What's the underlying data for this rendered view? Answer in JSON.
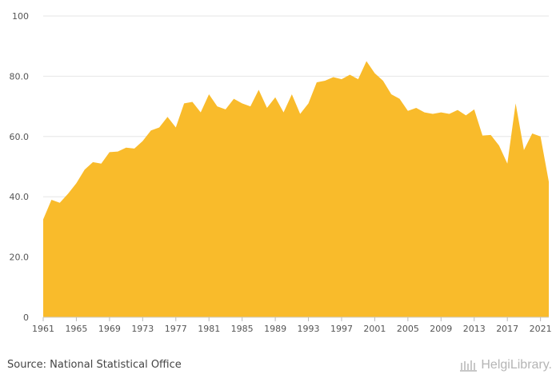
{
  "footer": {
    "source": "Source: National Statistical Office",
    "logo_text": "HelgiLibrary."
  },
  "chart_data": {
    "type": "area",
    "title": "",
    "xlabel": "",
    "ylabel": "",
    "color": "#f9bb2b",
    "gridline_color": "#e6e6e6",
    "grid": true,
    "ylim": [
      0,
      100
    ],
    "xlim": [
      1961,
      2022
    ],
    "y_ticks": [
      0,
      20,
      40,
      60,
      80,
      100
    ],
    "y_tick_labels": [
      "0",
      "20.0",
      "40.0",
      "60.0",
      "80.0",
      "100"
    ],
    "x_ticks": [
      1961,
      1965,
      1969,
      1973,
      1977,
      1981,
      1985,
      1989,
      1993,
      1997,
      2001,
      2005,
      2009,
      2013,
      2017,
      2021
    ],
    "x_tick_labels": [
      "1961",
      "1965",
      "1969",
      "1973",
      "1977",
      "1981",
      "1985",
      "1989",
      "1993",
      "1997",
      "2001",
      "2005",
      "2009",
      "2013",
      "2017",
      "2021"
    ],
    "x": [
      1961,
      1962,
      1963,
      1964,
      1965,
      1966,
      1967,
      1968,
      1969,
      1970,
      1971,
      1972,
      1973,
      1974,
      1975,
      1976,
      1977,
      1978,
      1979,
      1980,
      1981,
      1982,
      1983,
      1984,
      1985,
      1986,
      1987,
      1988,
      1989,
      1990,
      1991,
      1992,
      1993,
      1994,
      1995,
      1996,
      1997,
      1998,
      1999,
      2000,
      2001,
      2002,
      2003,
      2004,
      2005,
      2006,
      2007,
      2008,
      2009,
      2010,
      2011,
      2012,
      2013,
      2014,
      2015,
      2016,
      2017,
      2018,
      2019,
      2020,
      2021,
      2022
    ],
    "values": [
      32.5,
      39.0,
      38.0,
      41.0,
      44.5,
      49.0,
      51.5,
      51.0,
      54.8,
      55.0,
      56.3,
      56.0,
      58.5,
      62.0,
      63.0,
      66.5,
      63.0,
      71.0,
      71.5,
      68.0,
      74.0,
      70.0,
      69.0,
      72.5,
      71.0,
      70.0,
      75.5,
      69.5,
      73.0,
      68.0,
      74.0,
      67.5,
      71.0,
      78.0,
      78.5,
      79.7,
      79.0,
      80.5,
      79.0,
      85.0,
      81.0,
      78.5,
      74.0,
      72.5,
      68.5,
      69.5,
      68.0,
      67.5,
      68.0,
      67.5,
      68.8,
      67.0,
      69.0,
      60.3,
      60.5,
      57.0,
      51.0,
      71.0,
      55.5,
      61.0,
      60.0,
      45.0
    ]
  }
}
